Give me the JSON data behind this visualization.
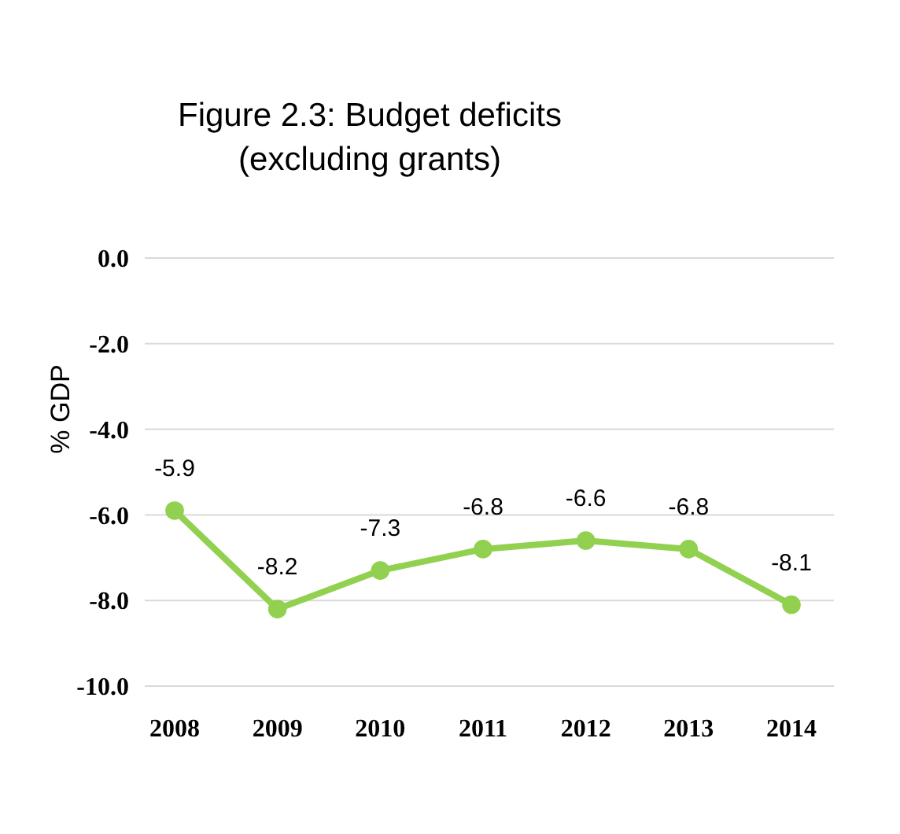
{
  "chart_data": {
    "type": "line",
    "title": "Figure 2.3: Budget deficits\n(excluding grants)",
    "ylabel": "% GDP",
    "categories": [
      "2008",
      "2009",
      "2010",
      "2011",
      "2012",
      "2013",
      "2014"
    ],
    "series": [
      {
        "color": "#92d050",
        "values": [
          -5.9,
          -8.2,
          -7.3,
          -6.8,
          -6.6,
          -6.8,
          -8.1
        ]
      }
    ],
    "ylim": [
      -10,
      0
    ],
    "yticks": [
      {
        "value": 0,
        "label": "0.0"
      },
      {
        "value": -2,
        "label": "-2.0"
      },
      {
        "value": -4,
        "label": "-4.0"
      },
      {
        "value": -6,
        "label": "-6.0"
      },
      {
        "value": -8,
        "label": "-8.0"
      },
      {
        "value": -10,
        "label": "-10.0"
      }
    ],
    "grid": "y",
    "marker": "circle",
    "line_style": "solid",
    "data_labels": true
  }
}
